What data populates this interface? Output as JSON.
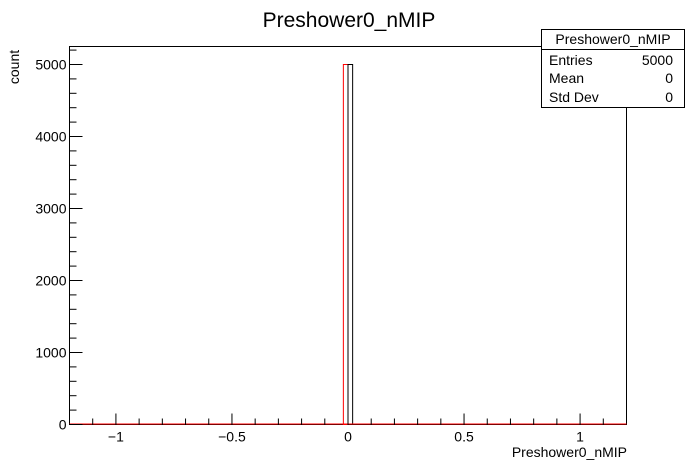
{
  "chart_data": {
    "type": "bar",
    "title": "Preshower0_nMIP",
    "xlabel": "Preshower0_nMIP",
    "ylabel": "count",
    "xlim": [
      -1.2,
      1.2
    ],
    "ylim": [
      0,
      5250
    ],
    "x_ticks": [
      -1,
      -0.5,
      0,
      0.5,
      1
    ],
    "x_tick_labels": [
      "−1",
      "−0.5",
      "0",
      "0.5",
      "1"
    ],
    "y_ticks": [
      0,
      1000,
      2000,
      3000,
      4000,
      5000
    ],
    "y_tick_labels": [
      "0",
      "1000",
      "2000",
      "3000",
      "4000",
      "5000"
    ],
    "bins": [
      {
        "x_low": -0.02,
        "x_high": 0.0,
        "value": 5000
      },
      {
        "x_low": 0.0,
        "x_high": 0.02,
        "value": 5000
      }
    ],
    "series_colors": {
      "red": "#ff0000",
      "black": "#000000"
    },
    "grid": false
  },
  "stats": {
    "title": "Preshower0_nMIP",
    "rows": [
      {
        "label": "Entries",
        "value": "5000"
      },
      {
        "label": "Mean",
        "value": "0"
      },
      {
        "label": "Std Dev",
        "value": "0"
      }
    ]
  }
}
